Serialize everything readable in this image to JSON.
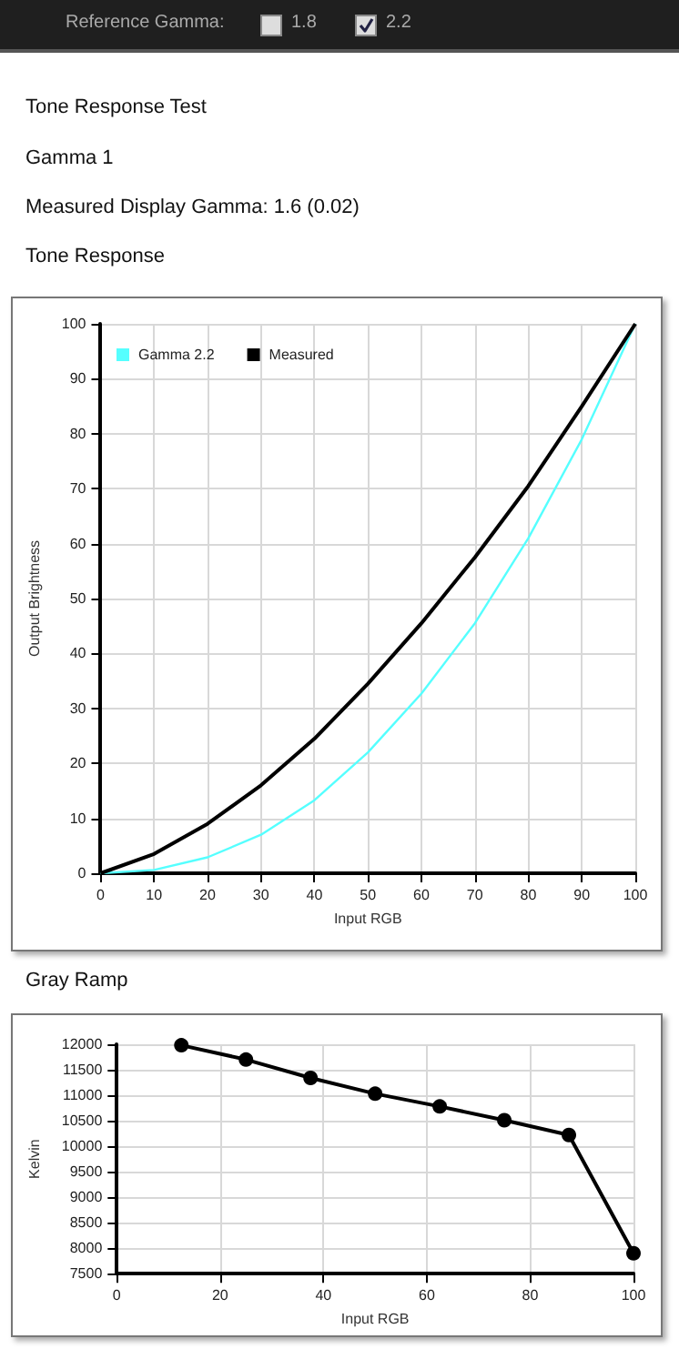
{
  "chart_data": [
    {
      "type": "line",
      "title": "Tone Response",
      "xlabel": "Input RGB",
      "ylabel": "Output Brightness",
      "annotations": [
        "Reference Gamma:",
        "1.8",
        "2.2",
        "Tone Response Test",
        "Gamma 1",
        "Measured Display Gamma: 1.6 (0.02)"
      ],
      "x": [
        0,
        10,
        20,
        30,
        40,
        50,
        60,
        70,
        80,
        90,
        100
      ],
      "series": [
        {
          "name": "Gamma 2.2",
          "color": "#55ffff",
          "values": [
            0,
            0.6,
            2.9,
            7,
            13.3,
            22,
            32.7,
            45.5,
            61,
            79,
            100
          ]
        },
        {
          "name": "Measured",
          "color": "#000000",
          "values": [
            0,
            3.5,
            9,
            16,
            24.5,
            34.5,
            45.5,
            57.5,
            70.5,
            85,
            100
          ]
        }
      ],
      "xlim": [
        0,
        100
      ],
      "xticks": [
        0,
        10,
        20,
        30,
        40,
        50,
        60,
        70,
        80,
        90,
        100
      ],
      "ylim": [
        0,
        100
      ],
      "yticks": [
        0,
        10,
        20,
        30,
        40,
        50,
        60,
        70,
        80,
        90,
        100
      ],
      "grid": true,
      "legend": "top left",
      "marker": "none",
      "line_style": "solid"
    },
    {
      "type": "line",
      "title": "Gray Ramp",
      "xlabel": "Input RGB",
      "ylabel": "Kelvin",
      "x": [
        12.5,
        25,
        37.5,
        50,
        62.5,
        75,
        87.5,
        100
      ],
      "series": [
        {
          "color": "#000000",
          "values": [
            11980,
            11700,
            11340,
            11030,
            10780,
            10510,
            10220,
            7900
          ]
        }
      ],
      "xlim": [
        0,
        100
      ],
      "xticks": [
        0,
        20,
        40,
        60,
        80,
        100
      ],
      "ylim": [
        7500,
        12000
      ],
      "yticks": [
        7500,
        8000,
        8500,
        9000,
        9500,
        10000,
        10500,
        11000,
        11500,
        12000
      ],
      "grid": true,
      "legend": false,
      "marker": "circle",
      "line_style": "solid"
    }
  ]
}
